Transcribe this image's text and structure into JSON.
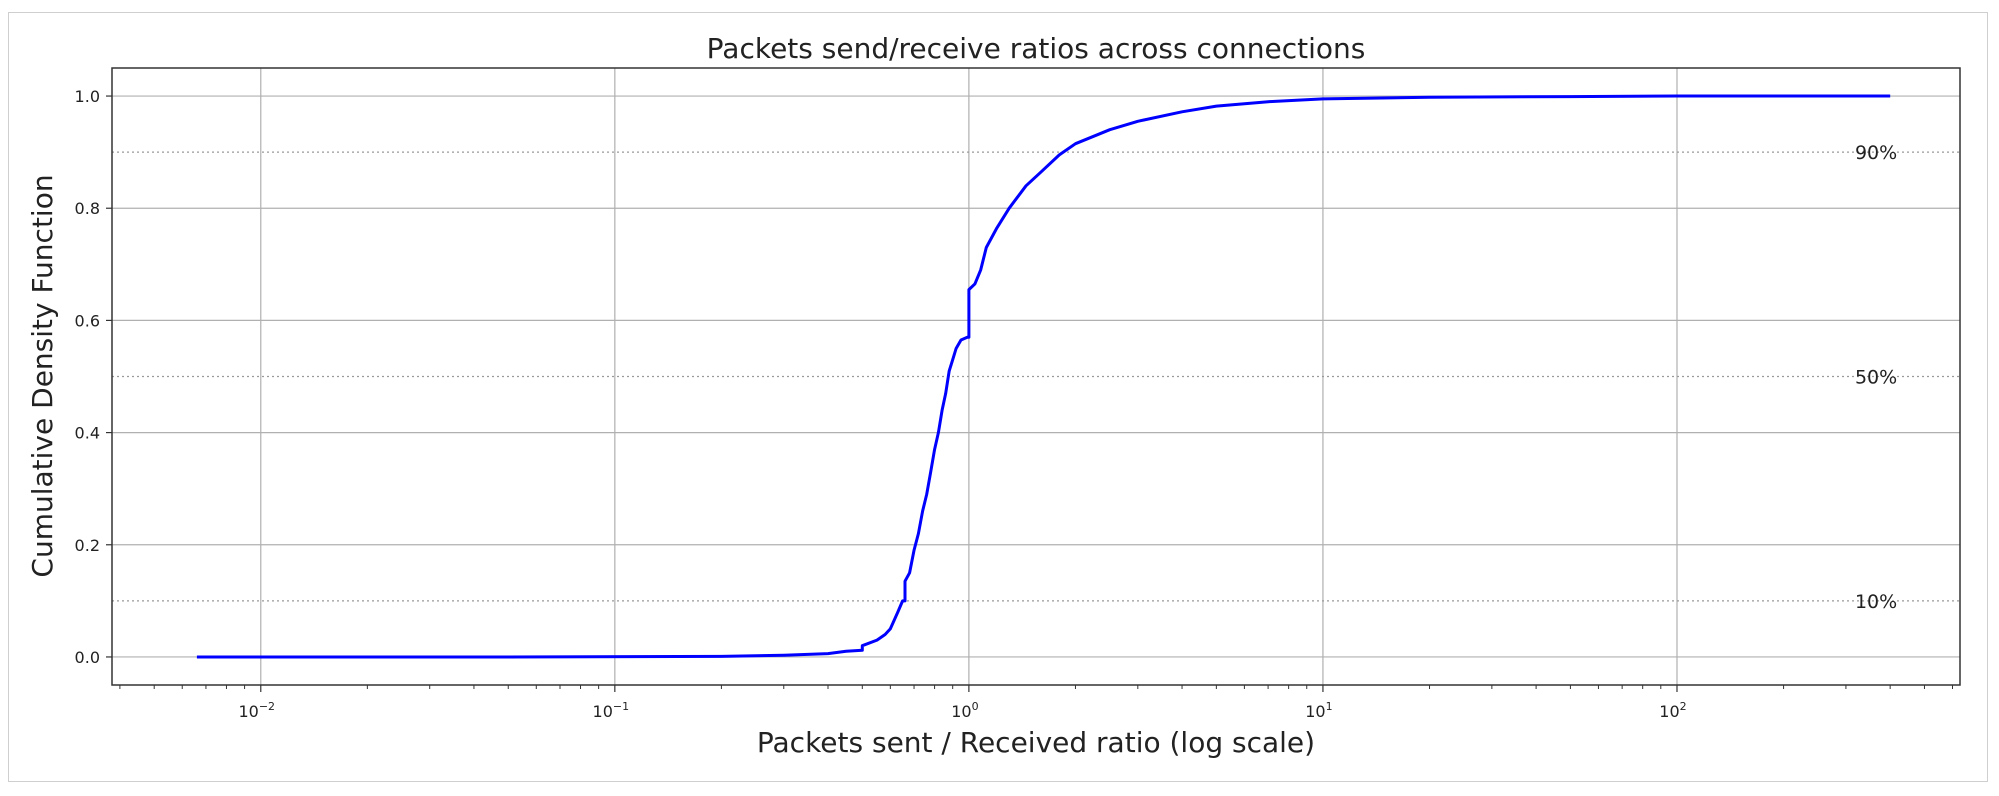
{
  "chart_data": {
    "type": "line",
    "title": "Packets send/receive ratios across connections",
    "xlabel": "Packets sent / Received ratio (log scale)",
    "ylabel": "Cumulative Density Function",
    "xscale": "log",
    "xlim": [
      0.0038,
      630
    ],
    "ylim": [
      -0.05,
      1.05
    ],
    "x_ticks": [
      0.01,
      0.1,
      1,
      10,
      100
    ],
    "x_tick_labels": [
      {
        "base": "10",
        "exp": "−2"
      },
      {
        "base": "10",
        "exp": "−1"
      },
      {
        "base": "10",
        "exp": "0"
      },
      {
        "base": "10",
        "exp": "1"
      },
      {
        "base": "10",
        "exp": "2"
      }
    ],
    "y_ticks": [
      0.0,
      0.2,
      0.4,
      0.6,
      0.8,
      1.0
    ],
    "y_tick_labels": [
      "0.0",
      "0.2",
      "0.4",
      "0.6",
      "0.8",
      "1.0"
    ],
    "grid": true,
    "reference_lines": [
      {
        "y": 0.9,
        "label": "90%"
      },
      {
        "y": 0.5,
        "label": "50%"
      },
      {
        "y": 0.1,
        "label": "10%"
      }
    ],
    "series": [
      {
        "color": "#0000ff",
        "x": [
          0.0066,
          0.05,
          0.2,
          0.3,
          0.4,
          0.45,
          0.5,
          0.5,
          0.55,
          0.58,
          0.6,
          0.63,
          0.65,
          0.66,
          0.66,
          0.68,
          0.7,
          0.72,
          0.74,
          0.76,
          0.78,
          0.8,
          0.82,
          0.84,
          0.86,
          0.88,
          0.9,
          0.92,
          0.95,
          0.99,
          1.0,
          1.0,
          1.04,
          1.08,
          1.12,
          1.2,
          1.3,
          1.45,
          1.6,
          1.8,
          2.0,
          2.5,
          3.0,
          4.0,
          5.0,
          7.0,
          10.0,
          20.0,
          50.0,
          100.0,
          400.0
        ],
        "y": [
          0.0,
          0.0,
          0.001,
          0.003,
          0.006,
          0.01,
          0.012,
          0.02,
          0.03,
          0.04,
          0.05,
          0.08,
          0.1,
          0.1,
          0.135,
          0.15,
          0.19,
          0.22,
          0.26,
          0.29,
          0.33,
          0.37,
          0.4,
          0.44,
          0.47,
          0.51,
          0.53,
          0.55,
          0.565,
          0.57,
          0.57,
          0.655,
          0.665,
          0.69,
          0.73,
          0.765,
          0.8,
          0.84,
          0.865,
          0.895,
          0.915,
          0.94,
          0.955,
          0.972,
          0.982,
          0.99,
          0.995,
          0.998,
          0.999,
          1.0,
          1.0
        ]
      }
    ]
  }
}
